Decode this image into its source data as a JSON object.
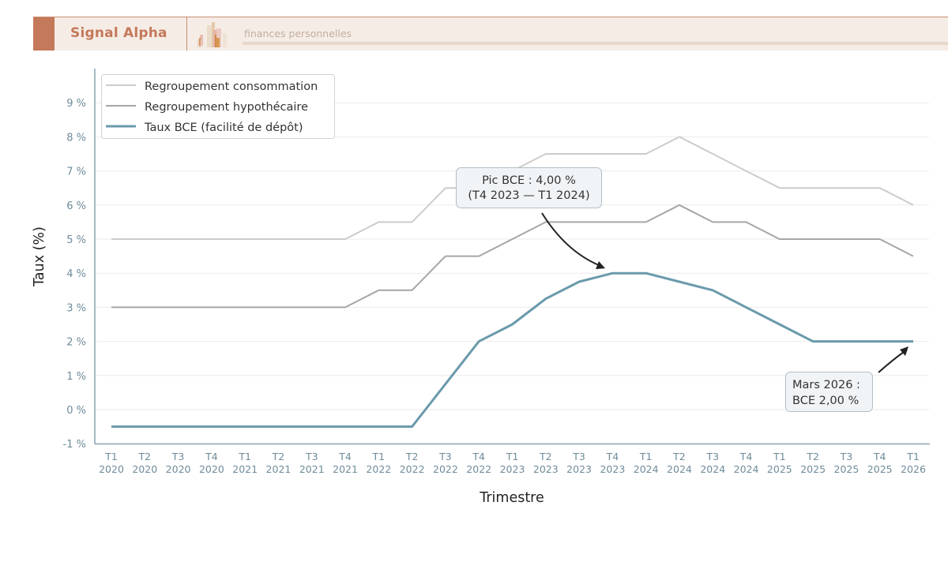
{
  "header": {
    "brand": "Signal Alpha",
    "tagline": "finances personnelles",
    "logo_icon": "bar-chart-logo-icon",
    "colors": {
      "accent": "#c4795a",
      "background": "#f6ece6",
      "tagline": "#c2ae9e"
    }
  },
  "chart_data": {
    "type": "line",
    "title": "",
    "xlabel": "Trimestre",
    "ylabel": "Taux (%)",
    "ylim": [
      -1,
      9
    ],
    "grid": true,
    "legend_position": "upper left",
    "y_ticks": [
      -1,
      0,
      1,
      2,
      3,
      4,
      5,
      6,
      7,
      8,
      9
    ],
    "y_tick_labels": [
      "-1 %",
      "0 %",
      "1 %",
      "2 %",
      "3 %",
      "4 %",
      "5 %",
      "6 %",
      "7 %",
      "8 %",
      "9 %"
    ],
    "categories": [
      [
        "T1",
        "2020"
      ],
      [
        "T2",
        "2020"
      ],
      [
        "T3",
        "2020"
      ],
      [
        "T4",
        "2020"
      ],
      [
        "T1",
        "2021"
      ],
      [
        "T2",
        "2021"
      ],
      [
        "T3",
        "2021"
      ],
      [
        "T4",
        "2021"
      ],
      [
        "T1",
        "2022"
      ],
      [
        "T2",
        "2022"
      ],
      [
        "T3",
        "2022"
      ],
      [
        "T4",
        "2022"
      ],
      [
        "T1",
        "2023"
      ],
      [
        "T2",
        "2023"
      ],
      [
        "T3",
        "2023"
      ],
      [
        "T4",
        "2023"
      ],
      [
        "T1",
        "2024"
      ],
      [
        "T2",
        "2024"
      ],
      [
        "T3",
        "2024"
      ],
      [
        "T4",
        "2024"
      ],
      [
        "T1",
        "2025"
      ],
      [
        "T2",
        "2025"
      ],
      [
        "T3",
        "2025"
      ],
      [
        "T4",
        "2025"
      ],
      [
        "T1",
        "2026"
      ]
    ],
    "series": [
      {
        "name": "Regroupement consommation",
        "color": "#cccccc",
        "width": 2,
        "values": [
          5,
          5,
          5,
          5,
          5,
          5,
          5,
          5,
          5.5,
          5.5,
          6.5,
          6.5,
          7,
          7.5,
          7.5,
          7.5,
          7.5,
          8,
          7.5,
          7,
          6.5,
          6.5,
          6.5,
          6.5,
          6
        ]
      },
      {
        "name": "Regroupement hypothécaire",
        "color": "#a6a6a6",
        "width": 2,
        "values": [
          3,
          3,
          3,
          3,
          3,
          3,
          3,
          3,
          3.5,
          3.5,
          4.5,
          4.5,
          5,
          5.5,
          5.5,
          5.5,
          5.5,
          6,
          5.5,
          5.5,
          5,
          5,
          5,
          5,
          4.5
        ]
      },
      {
        "name": "Taux BCE (facilité de dépôt)",
        "color": "#6a9aab",
        "width": 3,
        "values": [
          -0.5,
          -0.5,
          -0.5,
          -0.5,
          -0.5,
          -0.5,
          -0.5,
          -0.5,
          -0.5,
          -0.5,
          0.75,
          2,
          2.5,
          3.25,
          3.75,
          4,
          4,
          3.75,
          3.5,
          3,
          2.5,
          2,
          2,
          2,
          2
        ]
      }
    ],
    "annotations": [
      {
        "lines": [
          "Pic BCE : 4,00 %",
          "(T4 2023 — T1 2024)"
        ],
        "target_index": 15,
        "target_value": 4.0
      },
      {
        "lines": [
          "Mars 2026 :",
          "BCE 2,00 %"
        ],
        "target_index": 24,
        "target_value": 2.0
      }
    ]
  }
}
